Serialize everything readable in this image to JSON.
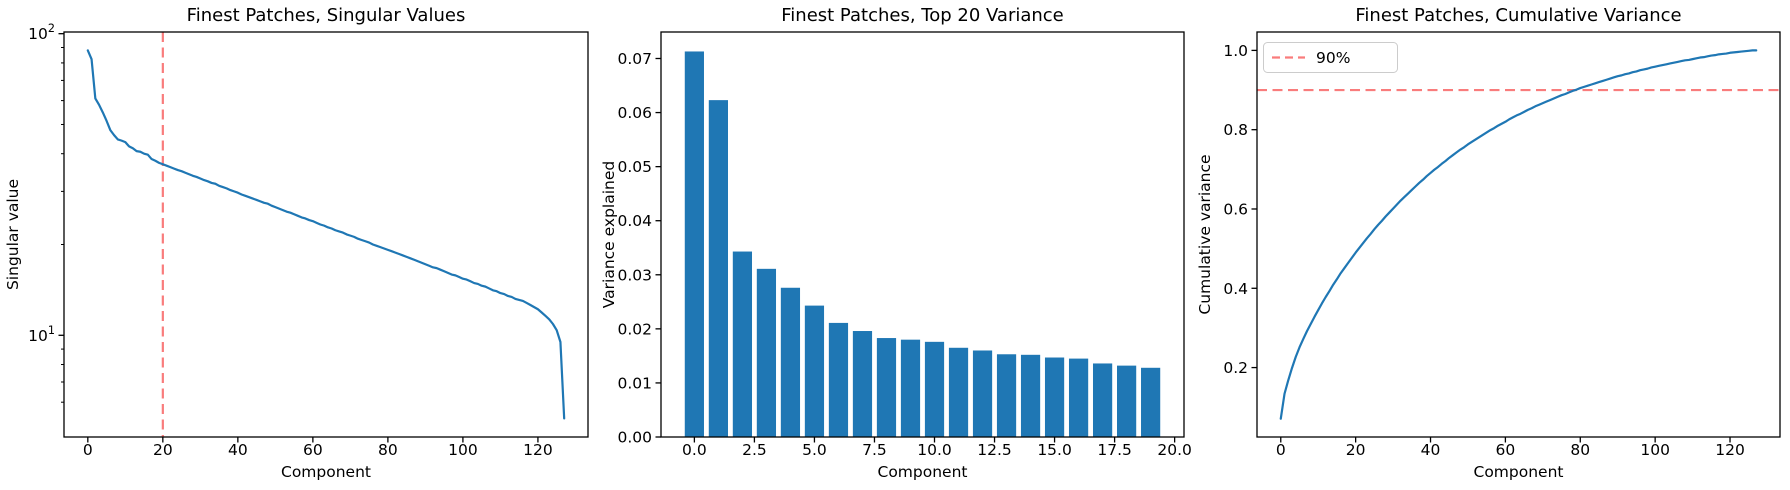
{
  "figure": {
    "background": "#ffffff",
    "line_color": "#1f77b4",
    "threshold_color": "#f97c7c"
  },
  "chart_data": [
    {
      "type": "line",
      "title": "Finest Patches, Singular Values",
      "xlabel": "Component",
      "ylabel": "Singular value",
      "yscale": "log",
      "xlim": [
        -6.35,
        133.35
      ],
      "ylim": [
        4.6,
        101.3
      ],
      "xticks": {
        "values": [
          0,
          20,
          40,
          60,
          80,
          100,
          120
        ],
        "labels": [
          "0",
          "20",
          "40",
          "60",
          "80",
          "100",
          "120"
        ]
      },
      "yticks": {
        "values": [
          10,
          100
        ],
        "labels": [
          "10¹",
          "10²"
        ]
      },
      "yminor": [
        6,
        7,
        8,
        9,
        20,
        30,
        40,
        50,
        60,
        70,
        80,
        90
      ],
      "line_color": "#1f77b4",
      "vline": {
        "x": 20,
        "color": "#f97c7c",
        "style": "dashed"
      },
      "values": [
        88.0,
        82.3,
        61.0,
        58.1,
        54.8,
        51.4,
        47.9,
        46.1,
        44.6,
        44.2,
        43.7,
        42.3,
        41.7,
        40.8,
        40.6,
        40.0,
        39.7,
        38.4,
        37.9,
        37.3,
        36.9,
        36.5,
        36.1,
        35.7,
        35.3,
        35.0,
        34.6,
        34.2,
        33.8,
        33.5,
        33.1,
        32.7,
        32.4,
        32.0,
        31.8,
        31.3,
        31.0,
        30.7,
        30.3,
        30.0,
        29.7,
        29.3,
        29.0,
        28.7,
        28.4,
        28.1,
        27.8,
        27.5,
        27.3,
        26.9,
        26.6,
        26.3,
        26.0,
        25.7,
        25.5,
        25.2,
        24.9,
        24.6,
        24.4,
        24.1,
        23.9,
        23.6,
        23.3,
        23.1,
        22.8,
        22.6,
        22.3,
        22.1,
        21.9,
        21.6,
        21.4,
        21.2,
        20.9,
        20.7,
        20.5,
        20.3,
        20.0,
        19.8,
        19.6,
        19.4,
        19.2,
        19.0,
        18.8,
        18.6,
        18.4,
        18.2,
        18.0,
        17.8,
        17.6,
        17.4,
        17.2,
        17.0,
        16.8,
        16.7,
        16.5,
        16.3,
        16.1,
        15.9,
        15.8,
        15.6,
        15.4,
        15.3,
        15.1,
        14.9,
        14.8,
        14.6,
        14.5,
        14.3,
        14.1,
        14.0,
        13.8,
        13.7,
        13.5,
        13.4,
        13.2,
        13.1,
        13.0,
        12.8,
        12.6,
        12.4,
        12.2,
        11.9,
        11.6,
        11.3,
        10.9,
        10.4,
        9.5,
        5.3
      ]
    },
    {
      "type": "bar",
      "title": "Finest Patches, Top 20 Variance",
      "xlabel": "Component",
      "ylabel": "Variance explained",
      "yscale": "linear",
      "xlim": [
        -1.39,
        20.39
      ],
      "ylim": [
        0,
        0.0749
      ],
      "xticks": {
        "values": [
          0,
          2.5,
          5,
          7.5,
          10,
          12.5,
          15,
          17.5,
          20
        ],
        "labels": [
          "0.0",
          "2.5",
          "5.0",
          "7.5",
          "10.0",
          "12.5",
          "15.0",
          "17.5",
          "20.0"
        ]
      },
      "yticks": {
        "values": [
          0,
          0.01,
          0.02,
          0.03,
          0.04,
          0.05,
          0.06,
          0.07
        ],
        "labels": [
          "0.00",
          "0.01",
          "0.02",
          "0.03",
          "0.04",
          "0.05",
          "0.06",
          "0.07"
        ]
      },
      "bar_color": "#1f77b4",
      "bar_width": 0.8,
      "values": [
        0.0713,
        0.0623,
        0.0343,
        0.0311,
        0.0276,
        0.0243,
        0.0211,
        0.0196,
        0.0183,
        0.018,
        0.0176,
        0.0165,
        0.016,
        0.0153,
        0.0152,
        0.0147,
        0.0145,
        0.0136,
        0.0132,
        0.0128
      ]
    },
    {
      "type": "line",
      "title": "Finest Patches, Cumulative Variance",
      "xlabel": "Component",
      "ylabel": "Cumulative variance",
      "yscale": "linear",
      "xlim": [
        -6.35,
        133.35
      ],
      "ylim": [
        0.0249,
        1.0464
      ],
      "xticks": {
        "values": [
          0,
          20,
          40,
          60,
          80,
          100,
          120
        ],
        "labels": [
          "0",
          "20",
          "40",
          "60",
          "80",
          "100",
          "120"
        ]
      },
      "yticks": {
        "values": [
          0.2,
          0.4,
          0.6,
          0.8,
          1.0
        ],
        "labels": [
          "0.2",
          "0.4",
          "0.6",
          "0.8",
          "1.0"
        ]
      },
      "line_color": "#1f77b4",
      "hline": {
        "y": 0.9,
        "color": "#f97c7c",
        "style": "dashed",
        "label": "90%"
      },
      "legend": {
        "position": "upper-left",
        "entries": [
          {
            "label": "90%",
            "color": "#f97c7c",
            "style": "dashed"
          }
        ]
      },
      "values": [
        0.071,
        0.134,
        0.168,
        0.199,
        0.227,
        0.251,
        0.272,
        0.292,
        0.31,
        0.328,
        0.345,
        0.362,
        0.378,
        0.393,
        0.409,
        0.423,
        0.438,
        0.451,
        0.464,
        0.477,
        0.49,
        0.502,
        0.514,
        0.526,
        0.537,
        0.549,
        0.56,
        0.57,
        0.581,
        0.591,
        0.601,
        0.611,
        0.621,
        0.63,
        0.639,
        0.648,
        0.657,
        0.666,
        0.674,
        0.683,
        0.691,
        0.699,
        0.706,
        0.714,
        0.721,
        0.729,
        0.736,
        0.743,
        0.75,
        0.756,
        0.763,
        0.769,
        0.775,
        0.781,
        0.787,
        0.793,
        0.799,
        0.804,
        0.81,
        0.815,
        0.82,
        0.826,
        0.831,
        0.836,
        0.84,
        0.845,
        0.85,
        0.854,
        0.859,
        0.863,
        0.867,
        0.871,
        0.875,
        0.879,
        0.883,
        0.887,
        0.89,
        0.894,
        0.898,
        0.901,
        0.905,
        0.908,
        0.911,
        0.914,
        0.917,
        0.92,
        0.923,
        0.926,
        0.929,
        0.932,
        0.935,
        0.937,
        0.94,
        0.942,
        0.945,
        0.947,
        0.95,
        0.952,
        0.954,
        0.957,
        0.959,
        0.961,
        0.963,
        0.965,
        0.967,
        0.969,
        0.971,
        0.973,
        0.975,
        0.976,
        0.978,
        0.98,
        0.982,
        0.983,
        0.985,
        0.987,
        0.988,
        0.99,
        0.991,
        0.992,
        0.994,
        0.995,
        0.996,
        0.997,
        0.998,
        0.999,
        1.0,
        1.0
      ]
    }
  ]
}
